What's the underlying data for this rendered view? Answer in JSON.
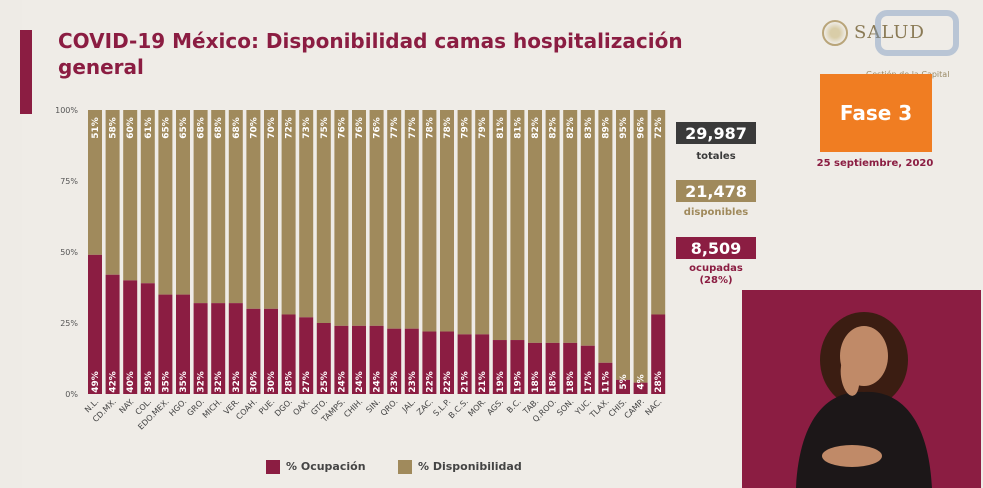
{
  "header": {
    "title_line1": "COVID-19 México: Disponibilidad camas hospitalización",
    "title_line2": "general",
    "logo_text": "SALUD",
    "logo_sub": "Gestión de la Capital",
    "phase": "Fase 3",
    "date": "25 septiembre, 2020"
  },
  "stats": {
    "total_value": "29,987",
    "total_label": "totales",
    "available_value": "21,478",
    "available_label": "disponibles",
    "occupied_value": "8,509",
    "occupied_label_line1": "ocupadas",
    "occupied_label_line2": "(28%)"
  },
  "colors": {
    "occupied": "#8b1d42",
    "available": "#a08a5c",
    "dark_box": "#3a3a3a",
    "phase": "#f07d22"
  },
  "legend": {
    "occupied": "% Ocupación",
    "available": "% Disponibilidad"
  },
  "chart_data": {
    "type": "bar",
    "stacked": true,
    "percent": true,
    "y_ticks": [
      "0%",
      "25%",
      "50%",
      "75%",
      "100%"
    ],
    "ylim": [
      0,
      100
    ],
    "categories": [
      "N.L.",
      "CD.MX.",
      "NAY.",
      "COL.",
      "EDO.MEX.",
      "HGO.",
      "GRO.",
      "MICH.",
      "VER.",
      "COAH.",
      "PUE.",
      "DGO.",
      "OAX.",
      "GTO.",
      "TAMPS.",
      "CHIH.",
      "SIN.",
      "QRO.",
      "JAL.",
      "ZAC.",
      "S.L.P.",
      "B.C.S.",
      "MOR.",
      "AGS.",
      "B.C.",
      "TAB.",
      "Q.ROO.",
      "SON.",
      "YUC.",
      "TLAX.",
      "CHIS.",
      "CAMP.",
      "NAC."
    ],
    "series": [
      {
        "name": "% Ocupación",
        "values": [
          49,
          42,
          40,
          39,
          35,
          35,
          32,
          32,
          32,
          30,
          30,
          28,
          27,
          25,
          24,
          24,
          24,
          23,
          23,
          22,
          22,
          21,
          21,
          19,
          19,
          18,
          18,
          18,
          17,
          11,
          5,
          4,
          28
        ]
      },
      {
        "name": "% Disponibilidad",
        "values": [
          51,
          58,
          60,
          61,
          65,
          65,
          68,
          68,
          68,
          70,
          70,
          72,
          73,
          75,
          76,
          76,
          76,
          77,
          77,
          78,
          78,
          79,
          79,
          81,
          81,
          82,
          82,
          82,
          83,
          89,
          95,
          96,
          72
        ]
      }
    ]
  }
}
